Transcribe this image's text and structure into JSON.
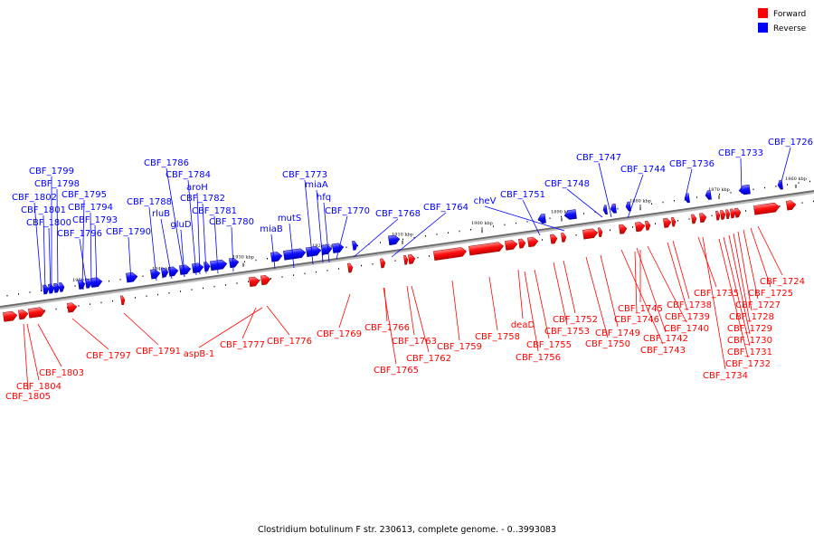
{
  "caption": "Clostridium botulinum F str. 230613, complete genome. - 0..3993083",
  "legend": {
    "forward": {
      "label": "Forward",
      "color": "#ff0000"
    },
    "reverse": {
      "label": "Reverse",
      "color": "#0000ff"
    }
  },
  "axis": {
    "ticks": [
      "1860 kbp",
      "1870 kbp",
      "1880 kbp",
      "1890 kbp",
      "1900 kbp",
      "1910 kbp",
      "1920 kbp",
      "1930 kbp",
      "1940 kbp",
      "1950 kbp"
    ]
  },
  "reverse_genes": [
    "CBF_1726",
    "CBF_1733",
    "CBF_1736",
    "CBF_1744",
    "CBF_1747",
    "CBF_1748",
    "CBF_1751",
    "cheV",
    "CBF_1764",
    "CBF_1768",
    "CBF_1770",
    "hfq",
    "miaA",
    "CBF_1773",
    "mutS",
    "miaB",
    "CBF_1780",
    "CBF_1781",
    "CBF_1782",
    "aroH",
    "CBF_1784",
    "CBF_1786",
    "gluD",
    "rluB",
    "CBF_1788",
    "CBF_1790",
    "CBF_1793",
    "CBF_1794",
    "CBF_1795",
    "CBF_1796",
    "CBF_1798",
    "CBF_1799",
    "CBF_1800",
    "CBF_1801",
    "CBF_1802"
  ],
  "forward_genes": [
    "CBF_1724",
    "CBF_1725",
    "CBF_1727",
    "CBF_1728",
    "CBF_1729",
    "CBF_1730",
    "CBF_1731",
    "CBF_1732",
    "CBF_1734",
    "CBF_1735",
    "CBF_1738",
    "CBF_1739",
    "CBF_1740",
    "CBF_1742",
    "CBF_1743",
    "CBF_1745",
    "CBF_1746",
    "CBF_1749",
    "CBF_1750",
    "CBF_1752",
    "CBF_1753",
    "deaD",
    "CBF_1755",
    "CBF_1756",
    "CBF_1758",
    "CBF_1759",
    "CBF_1762",
    "CBF_1763",
    "CBF_1765",
    "CBF_1766",
    "CBF_1769",
    "CBF_1776",
    "CBF_1777",
    "aspB-1",
    "CBF_1791",
    "CBF_1797",
    "CBF_1803",
    "CBF_1804",
    "CBF_1805"
  ]
}
